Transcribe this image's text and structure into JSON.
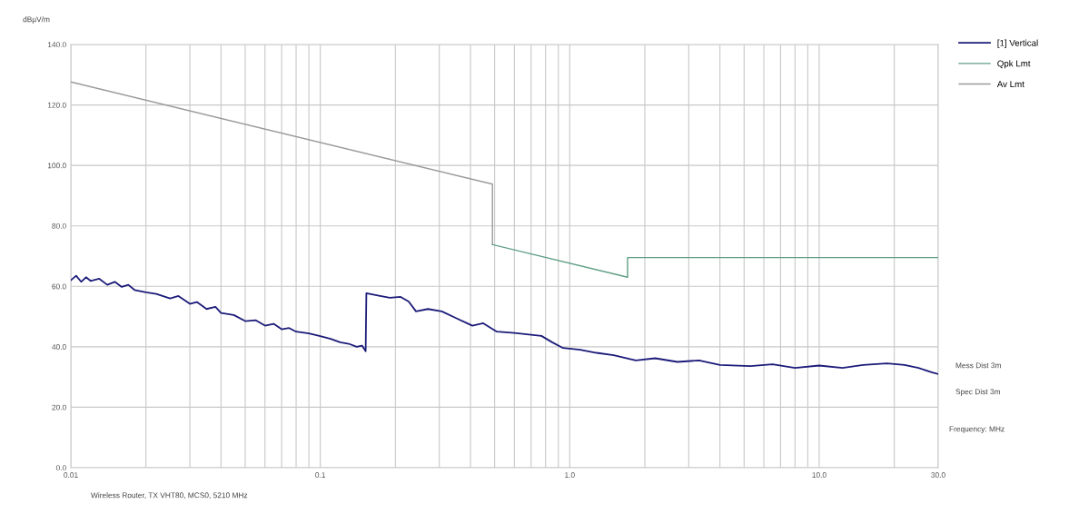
{
  "chart_data": {
    "type": "line",
    "ylabel": "dBµV/m",
    "log": "x",
    "xlim": [
      0.01,
      30
    ],
    "ylim": [
      0,
      140
    ],
    "xticks": [
      0.01,
      {
        "value": 0.02,
        "label": null
      },
      {
        "value": 0.03,
        "label": null
      },
      {
        "value": 0.04,
        "label": null
      },
      {
        "value": 0.05,
        "label": null
      },
      {
        "value": 0.06,
        "label": null
      },
      {
        "value": 0.07,
        "label": null
      },
      {
        "value": 0.08,
        "label": null
      },
      {
        "value": 0.09,
        "label": null
      },
      0.1,
      {
        "value": 0.2,
        "label": null
      },
      {
        "value": 0.3,
        "label": null
      },
      {
        "value": 0.4,
        "label": null
      },
      {
        "value": 0.5,
        "label": null
      },
      {
        "value": 0.6,
        "label": null
      },
      {
        "value": 0.7,
        "label": null
      },
      {
        "value": 0.8,
        "label": null
      },
      {
        "value": 0.9,
        "label": null
      },
      {
        "value": 1,
        "label": "1.0"
      },
      {
        "value": 2,
        "label": null
      },
      {
        "value": 3,
        "label": null
      },
      {
        "value": 4,
        "label": null
      },
      {
        "value": 5,
        "label": null
      },
      {
        "value": 6,
        "label": null
      },
      {
        "value": 7,
        "label": null
      },
      {
        "value": 8,
        "label": null
      },
      {
        "value": 9,
        "label": null
      },
      {
        "value": 10,
        "label": "10.0"
      },
      {
        "value": 20,
        "label": null
      },
      {
        "value": 30,
        "label": "30.0"
      }
    ],
    "yticks": [
      {
        "value": 0,
        "label": "0.0"
      },
      {
        "value": 20,
        "label": "20.0"
      },
      {
        "value": 40,
        "label": "40.0"
      },
      {
        "value": 60,
        "label": "60.0"
      },
      {
        "value": 80,
        "label": "80.0"
      },
      {
        "value": 100,
        "label": "100.0"
      },
      {
        "value": 120,
        "label": "120.0"
      },
      {
        "value": 140,
        "label": "140.0"
      }
    ],
    "grid": true,
    "legend": "top right",
    "marker": "none",
    "line_style": "solid",
    "series": [
      {
        "name": "[1] Vertical",
        "color": "#1c1c7a",
        "x": [
          0.01,
          0.0105,
          0.011,
          0.0115,
          0.012,
          0.013,
          0.014,
          0.015,
          0.016,
          0.017,
          0.018,
          0.02,
          0.022,
          0.025,
          0.027,
          0.03,
          0.032,
          0.035,
          0.038,
          0.04,
          0.045,
          0.05,
          0.055,
          0.06,
          0.065,
          0.07,
          0.075,
          0.08,
          0.09,
          0.1,
          0.11,
          0.12,
          0.13,
          0.14,
          0.147,
          0.152,
          0.153,
          0.17,
          0.19,
          0.21,
          0.226,
          0.242,
          0.27,
          0.307,
          0.35,
          0.407,
          0.45,
          0.51,
          0.6,
          0.77,
          0.85,
          0.94,
          1.1,
          1.28,
          1.5,
          1.84,
          2.2,
          2.7,
          3.3,
          4.0,
          5.3,
          6.5,
          8.0,
          10.0,
          12.4,
          15.0,
          18.7,
          22.0,
          25.0,
          28.4,
          30.0
        ],
        "values": [
          62,
          63.5,
          61.5,
          63,
          61.8,
          62.5,
          60.5,
          61.5,
          59.8,
          60.5,
          58.8,
          58,
          57.5,
          56,
          56.8,
          54.2,
          54.8,
          52.5,
          53.2,
          51.2,
          50.5,
          48.5,
          48.8,
          47,
          47.6,
          45.8,
          46.2,
          45,
          44.4,
          43.5,
          42.6,
          41.5,
          41,
          40,
          40.4,
          38.5,
          57.7,
          57,
          56.2,
          56.5,
          55,
          51.7,
          52.5,
          51.7,
          49.5,
          47,
          47.8,
          45,
          44.6,
          43.6,
          41.5,
          39.6,
          39,
          38,
          37.2,
          35.5,
          36.2,
          35,
          35.5,
          34,
          33.6,
          34.2,
          33,
          33.8,
          33,
          34,
          34.5,
          34,
          33,
          31.5,
          31
        ]
      },
      {
        "name": "Qpk Lmt",
        "color": "#5f9e84",
        "x": [
          0.49,
          1.705,
          1.705,
          30
        ],
        "values": [
          73.8,
          63,
          69.5,
          69.5
        ]
      },
      {
        "name": "Av Lmt",
        "color": "#9a9a9a",
        "x": [
          0.01,
          0.49,
          0.49
        ],
        "values": [
          127.6,
          93.8,
          73.8
        ]
      }
    ],
    "annotations": [
      "Mess Dist 3m",
      "Spec Dist 3m",
      "Frequency: MHz",
      "Wireless Router, TX VHT80, MCS0, 5210 MHz"
    ]
  }
}
